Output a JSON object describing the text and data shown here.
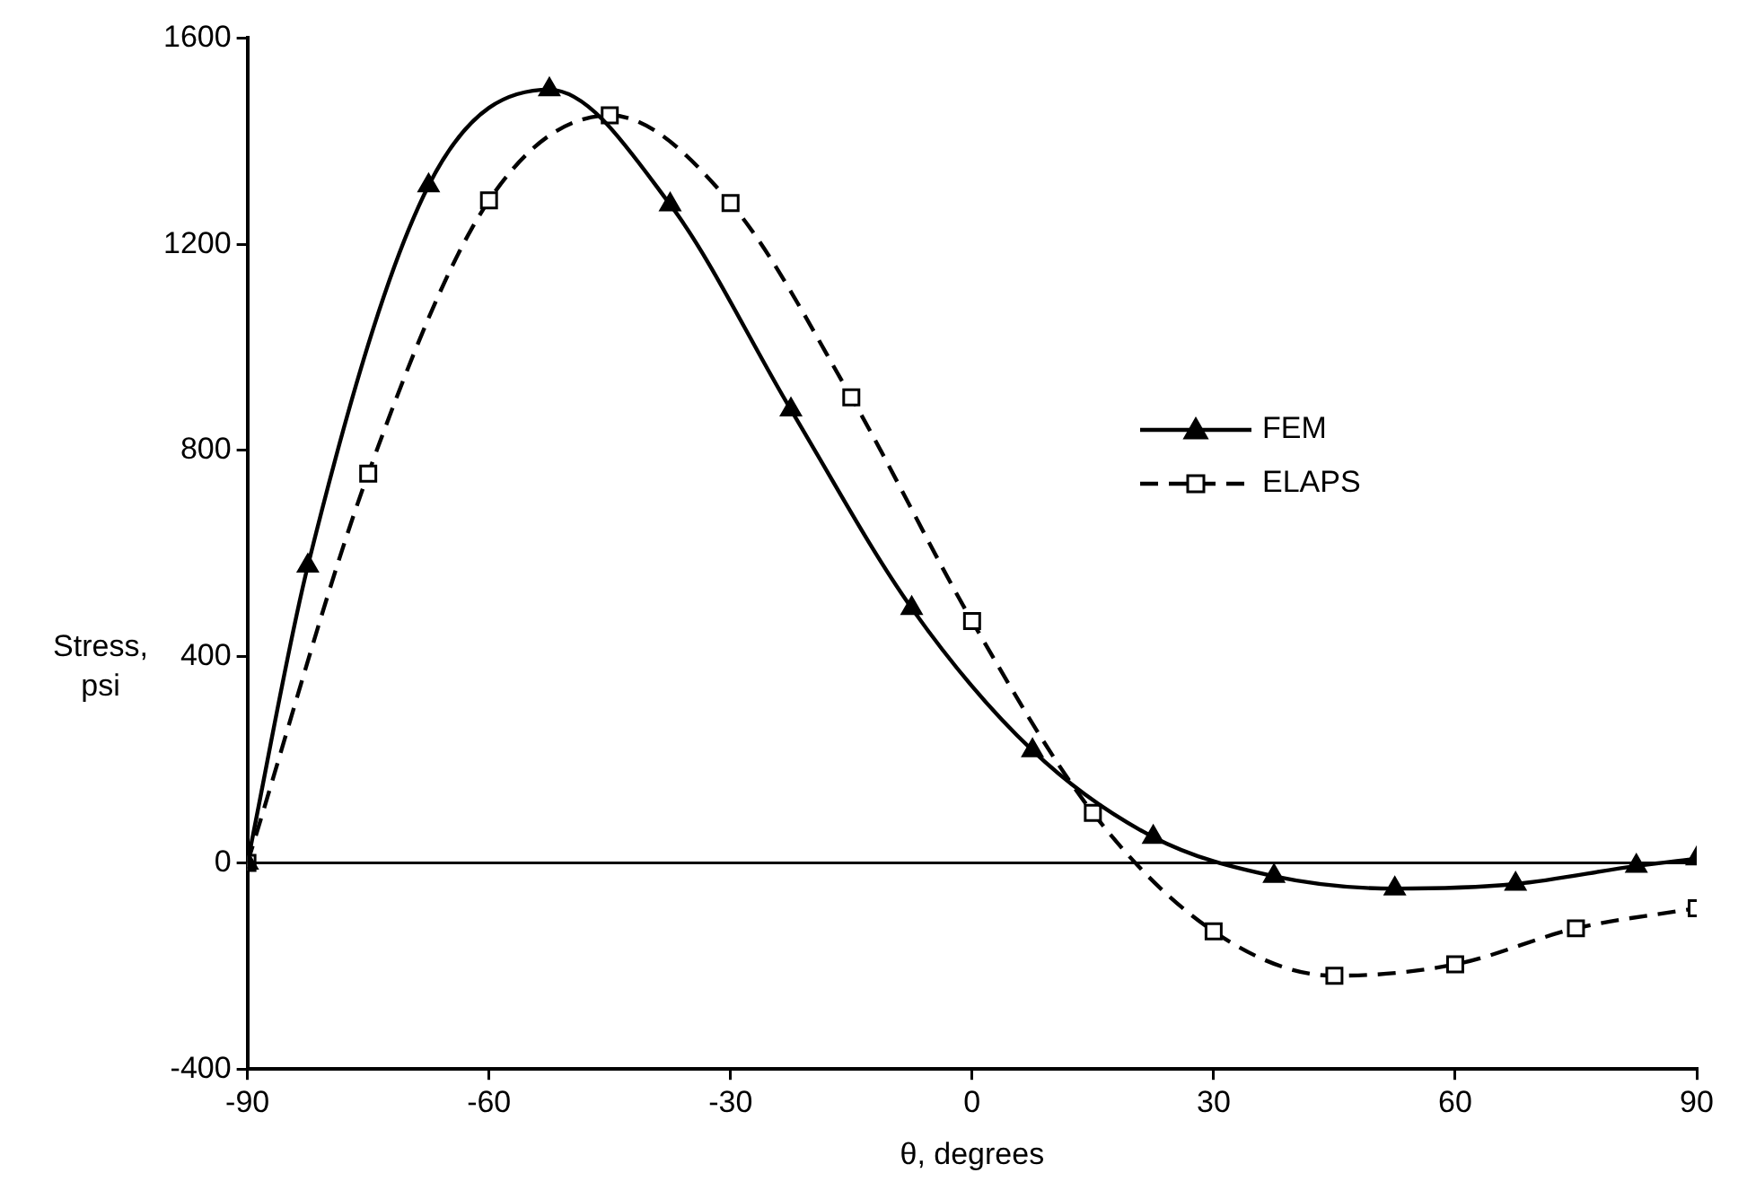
{
  "chart_data": {
    "type": "line",
    "xlabel": "θ, degrees",
    "ylabel": "Stress,\npsi",
    "xlim": [
      -90,
      90
    ],
    "xticks": [
      -90,
      -60,
      -30,
      0,
      30,
      60,
      90
    ],
    "ylim": [
      -400,
      1600
    ],
    "yticks": [
      -400,
      0,
      400,
      800,
      1200,
      1600
    ],
    "grid": false,
    "legend": "right",
    "ref_lines": [
      {
        "axis": "y",
        "value": 0,
        "color": "#000000"
      }
    ],
    "series": [
      {
        "name": "FEM",
        "color": "#000000",
        "marker": "triangle",
        "line_style": "solid",
        "x": [
          -90,
          -82.5,
          -67.5,
          -52.5,
          -37.5,
          -22.5,
          -7.5,
          7.5,
          22.5,
          37.5,
          52.5,
          67.5,
          82.5,
          90
        ],
        "values": [
          0,
          576,
          1314,
          1500,
          1277,
          879,
          494,
          218,
          50,
          -26,
          -50,
          -41,
          -6,
          8
        ]
      },
      {
        "name": "ELAPS",
        "color": "#000000",
        "marker": "square",
        "line_style": "dashed",
        "x": [
          -90,
          -75,
          -60,
          -45,
          -30,
          -15,
          0,
          15,
          30,
          45,
          60,
          75,
          90
        ],
        "values": [
          0,
          755,
          1285,
          1450,
          1280,
          903,
          469,
          97,
          -133,
          -219,
          -197,
          -127,
          -88
        ]
      }
    ]
  }
}
